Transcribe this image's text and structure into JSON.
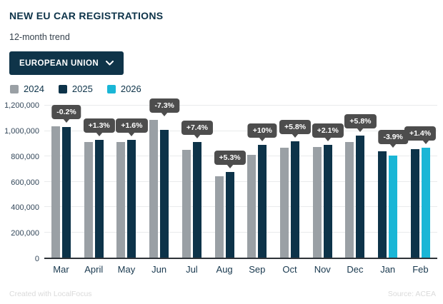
{
  "header": {
    "title": "NEW EU CAR REGISTRATIONS",
    "subtitle": "12-month trend",
    "dropdown_label": "EUROPEAN UNION"
  },
  "footer": {
    "credit": "Created with LocalFocus",
    "source": "Source: ACEA"
  },
  "colors": {
    "navy": "#0d3349",
    "gray": "#9aa0a5",
    "cyan": "#1ab6d6",
    "tooltip_bg": "#4d4d4d",
    "gridline": "#e9ebec",
    "axis_line": "#2e3338"
  },
  "chart_data": {
    "type": "bar",
    "title": "NEW EU CAR REGISTRATIONS — 12-month trend",
    "categories": [
      "Mar",
      "April",
      "May",
      "Jun",
      "Jul",
      "Aug",
      "Sep",
      "Oct",
      "Nov",
      "Dec",
      "Jan",
      "Feb"
    ],
    "series": [
      {
        "name": "2024",
        "color": "#9aa0a5",
        "values": [
          1035000,
          915000,
          915000,
          1090000,
          852000,
          643000,
          809000,
          867000,
          872000,
          910000,
          null,
          null
        ]
      },
      {
        "name": "2025",
        "color": "#0d3349",
        "values": [
          1033000,
          927000,
          930000,
          1010000,
          915000,
          677000,
          890000,
          917000,
          890000,
          963000,
          838000,
          857000
        ]
      },
      {
        "name": "2026",
        "color": "#1ab6d6",
        "values": [
          null,
          null,
          null,
          null,
          null,
          null,
          null,
          null,
          null,
          null,
          805000,
          869000
        ]
      }
    ],
    "change_labels": [
      "-0.2%",
      "+1.3%",
      "+1.6%",
      "-7.3%",
      "+7.4%",
      "+5.3%",
      "+10%",
      "+5.8%",
      "+2.1%",
      "+5.8%",
      "-3.9%",
      "+1.4%"
    ],
    "xlabel": "",
    "ylabel": "",
    "ylim": [
      0,
      1200000
    ],
    "y_ticks": [
      0,
      200000,
      400000,
      600000,
      800000,
      1000000,
      1200000
    ],
    "y_tick_labels": [
      "0",
      "200,000",
      "400,000",
      "600,000",
      "800,000",
      "1,000,000",
      "1,200,000"
    ],
    "grid": true,
    "legend_position": "top-left"
  }
}
